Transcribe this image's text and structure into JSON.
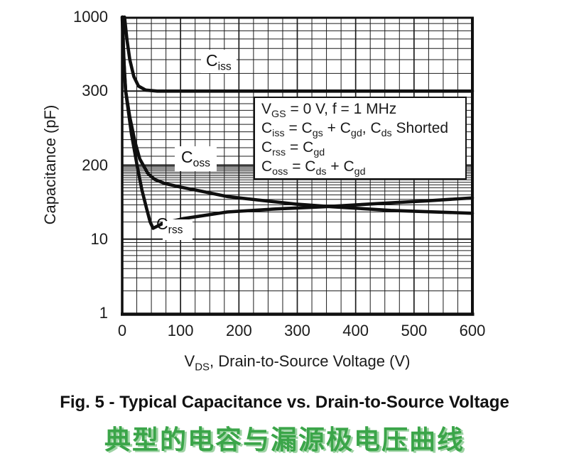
{
  "colors": {
    "grid": "#1c1c1c",
    "curve": "#0f0f0f",
    "text": "#1b1b1b",
    "caption_green": "#3BA549",
    "caption_green_shadow": "#9ed3a4",
    "background": "#ffffff"
  },
  "chart": {
    "y_axis": {
      "title": "Capacitance (pF)",
      "tick_labels": [
        "1000",
        "300",
        "200",
        "10",
        "1"
      ],
      "tick_values": [
        1000,
        300,
        200,
        10,
        1
      ],
      "minor_ticks": [
        [
          900,
          800,
          700,
          600,
          500,
          400
        ],
        [
          290,
          280,
          270,
          260,
          250,
          240,
          230,
          220,
          210
        ],
        [
          190,
          180,
          170,
          160,
          150,
          140,
          130,
          120,
          110,
          100,
          90,
          80,
          70,
          60,
          50,
          40,
          30,
          20
        ],
        [
          9,
          8,
          7,
          6,
          5,
          4,
          3,
          2
        ]
      ]
    },
    "x_axis": {
      "title": "V_{DS}, Drain-to-Source Voltage (V)",
      "tick_labels": [
        "0",
        "100",
        "200",
        "300",
        "400",
        "500",
        "600"
      ],
      "tick_values": [
        0,
        100,
        200,
        300,
        400,
        500,
        600
      ],
      "minor_step": 25,
      "min": 0,
      "max": 600
    },
    "annotation": {
      "lines": [
        "V_{GS} = 0 V, f = 1 MHz",
        "C_{iss} = C_{gs} + C_{gd}, C_{ds} Shorted",
        "C_{rss} = C_{gd}",
        "C_{oss} = C_{ds} + C_{gd}"
      ]
    },
    "curve_labels": {
      "ciss": "C_{iss}",
      "coss": "C_{oss}",
      "crss": "C_{rss}"
    }
  },
  "chart_data": {
    "type": "line",
    "title": "",
    "xlabel": "VDS, Drain-to-Source Voltage (V)",
    "ylabel": "Capacitance (pF)",
    "x_range": [
      0,
      600
    ],
    "y_scale": "piecewise-log-equal-bands",
    "y_ticks": [
      1000,
      300,
      200,
      10,
      1
    ],
    "grid": true,
    "conditions": "VGS = 0 V, f = 1 MHz; Ciss = Cgs + Cgd, Cds Shorted; Crss = Cgd; Coss = Cds + Cgd",
    "series": [
      {
        "name": "Ciss",
        "points": [
          [
            4,
            1000
          ],
          [
            8,
            700
          ],
          [
            13,
            500
          ],
          [
            20,
            380
          ],
          [
            28,
            325
          ],
          [
            40,
            305
          ],
          [
            60,
            300
          ],
          [
            600,
            300
          ]
        ]
      },
      {
        "name": "Coss",
        "points": [
          [
            1,
            1000
          ],
          [
            2,
            620
          ],
          [
            4,
            400
          ],
          [
            6,
            300
          ],
          [
            13,
            260
          ],
          [
            22,
            227
          ],
          [
            30,
            207
          ],
          [
            36,
            200
          ],
          [
            44,
            142
          ],
          [
            56,
            112
          ],
          [
            73,
            95
          ],
          [
            100,
            82
          ],
          [
            137,
            69
          ],
          [
            180,
            56
          ],
          [
            230,
            49
          ],
          [
            300,
            41
          ],
          [
            360,
            37
          ],
          [
            460,
            32
          ],
          [
            600,
            28.5
          ]
        ]
      },
      {
        "name": "Crss",
        "points": [
          [
            0,
            1000
          ],
          [
            3,
            480
          ],
          [
            6,
            300
          ],
          [
            16,
            237
          ],
          [
            26,
            185
          ],
          [
            34,
            72
          ],
          [
            42,
            34
          ],
          [
            48,
            20
          ],
          [
            53,
            15.5
          ],
          [
            70,
            19
          ],
          [
            105,
            23
          ],
          [
            180,
            30
          ],
          [
            265,
            34
          ],
          [
            345,
            37
          ],
          [
            435,
            42
          ],
          [
            520,
            47
          ],
          [
            600,
            53
          ]
        ]
      }
    ]
  },
  "captions": {
    "figure": "Fig. 5 - Typical Capacitance vs. Drain-to-Source Voltage",
    "chinese": "典型的电容与漏源极电压曲线"
  }
}
